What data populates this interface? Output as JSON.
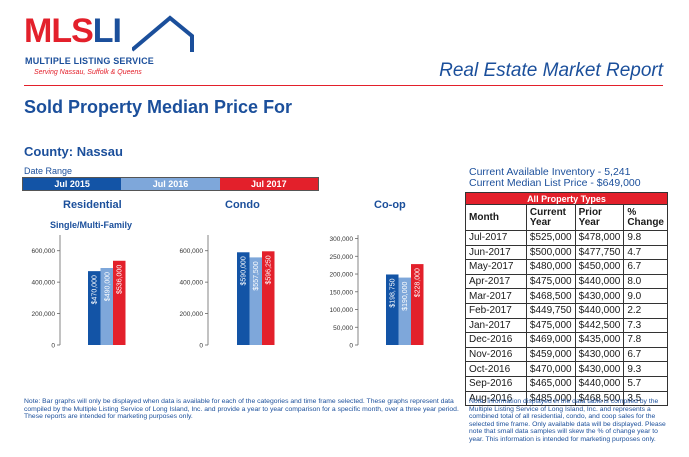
{
  "logo": {
    "mls": "MLS",
    "li": "LI",
    "name": "MULTIPLE LISTING SERVICE",
    "tagline": "Serving Nassau, Suffolk & Queens"
  },
  "header": {
    "report_title": "Real Estate Market Report",
    "page_title": "Sold Property Median Price For",
    "county": "County: Nassau",
    "date_range_label": "Date Range",
    "date_ranges": [
      "Jul 2015",
      "Jul 2016",
      "Jul 2017"
    ]
  },
  "colors": {
    "brand_blue": "#1b4f9b",
    "brand_red": "#e3202b",
    "bar_2015": "#1354a6",
    "bar_2016": "#7ea7da",
    "bar_2017": "#e3202b"
  },
  "chart_data": [
    {
      "type": "bar",
      "title": "Residential",
      "subtitle": "Single/Multi-Family",
      "categories": [
        "Jul 2015",
        "Jul 2016",
        "Jul 2017"
      ],
      "values": [
        470000,
        490000,
        536000
      ],
      "value_labels": [
        "$470,000",
        "$490,000",
        "$536,000"
      ],
      "ylim": [
        0,
        700000
      ],
      "yticks": [
        0,
        200000,
        400000,
        600000
      ],
      "ytick_labels": [
        "0",
        "200,000",
        "400,000",
        "600,000"
      ]
    },
    {
      "type": "bar",
      "title": "Condo",
      "categories": [
        "Jul 2015",
        "Jul 2016",
        "Jul 2017"
      ],
      "values": [
        590000,
        557500,
        596250
      ],
      "value_labels": [
        "$590,000",
        "$557,500",
        "$596,250"
      ],
      "ylim": [
        0,
        700000
      ],
      "yticks": [
        0,
        200000,
        400000,
        600000
      ],
      "ytick_labels": [
        "0",
        "200,000",
        "400,000",
        "600,000"
      ]
    },
    {
      "type": "bar",
      "title": "Co-op",
      "categories": [
        "Jul 2015",
        "Jul 2016",
        "Jul 2017"
      ],
      "values": [
        198750,
        190000,
        228000
      ],
      "value_labels": [
        "$198,750",
        "$190,000",
        "$228,000"
      ],
      "ylim": [
        0,
        310000
      ],
      "yticks": [
        0,
        50000,
        100000,
        150000,
        200000,
        250000,
        300000
      ],
      "ytick_labels": [
        "0",
        "50,000",
        "100,000",
        "150,000",
        "200,000",
        "250,000",
        "300,000"
      ]
    }
  ],
  "inventory": {
    "line1": "Current Available Inventory - 5,241",
    "line2": "Current Median List Price - $649,000"
  },
  "table": {
    "group_header": "All Property Types",
    "columns": [
      "Month",
      "Current Year",
      "Prior Year",
      "% Change"
    ],
    "rows": [
      [
        "Jul-2017",
        "$525,000",
        "$478,000",
        "9.8"
      ],
      [
        "Jun-2017",
        "$500,000",
        "$477,750",
        "4.7"
      ],
      [
        "May-2017",
        "$480,000",
        "$450,000",
        "6.7"
      ],
      [
        "Apr-2017",
        "$475,000",
        "$440,000",
        "8.0"
      ],
      [
        "Mar-2017",
        "$468,500",
        "$430,000",
        "9.0"
      ],
      [
        "Feb-2017",
        "$449,750",
        "$440,000",
        "2.2"
      ],
      [
        "Jan-2017",
        "$475,000",
        "$442,500",
        "7.3"
      ],
      [
        "Dec-2016",
        "$469,000",
        "$435,000",
        "7.8"
      ],
      [
        "Nov-2016",
        "$459,000",
        "$430,000",
        "6.7"
      ],
      [
        "Oct-2016",
        "$470,000",
        "$430,000",
        "9.3"
      ],
      [
        "Sep-2016",
        "$465,000",
        "$440,000",
        "5.7"
      ],
      [
        "Aug-2016",
        "$485,000",
        "$468,500",
        "3.5"
      ]
    ]
  },
  "notes": {
    "left": "Note: Bar graphs will only be displayed when data is available for each of the categories and time frame selected. These graphs represent data compiled by the Multiple Listing Service of Long Island, Inc. and provide a year to year comparison for a specific month, over a three year period. These reports are intended for marketing purposes only.",
    "right": "Note: Information displayed in the data table is compiled by the Multiple  Listing Service of Long Island, Inc. and represents a combined total of all residential, condo, and coop sales for the selected time frame. Only available data will be displayed. Please note that small data samples will skew the % of change year to year. This information is intended for marketing purposes only."
  }
}
